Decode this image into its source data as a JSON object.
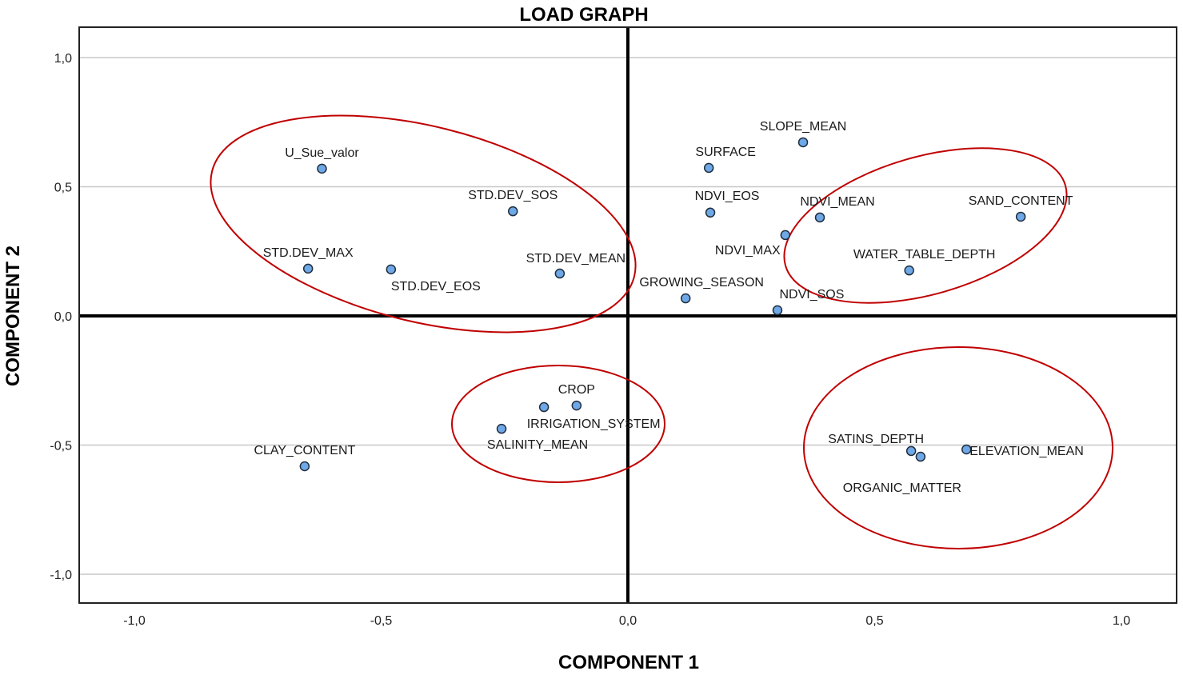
{
  "chart_data": {
    "type": "scatter",
    "title": "LOAD GRAPH",
    "xlabel": "COMPONENT 1",
    "ylabel": "COMPONENT 2",
    "xlim": [
      -1.2,
      1.1
    ],
    "ylim": [
      -1.12,
      1.12
    ],
    "xticks": [
      -1.0,
      -0.5,
      0.0,
      0.5,
      1.0
    ],
    "xtick_labels": [
      "-1,0",
      "-0,5",
      "0,0",
      "0,5",
      "1,0"
    ],
    "yticks": [
      1.0,
      0.5,
      0.0,
      -0.5,
      -1.0
    ],
    "ytick_labels": [
      "1,0",
      "0,5",
      "0,0",
      "-0,5",
      "-1,0"
    ],
    "grid": "horizontal",
    "marker_color": "#6fa8e6",
    "marker_edge": "#1f2d3d",
    "highlight_color": "#c00000",
    "points": [
      {
        "label": "U_Sue_valor",
        "x": -0.62,
        "y": 0.57,
        "label_pos": "above"
      },
      {
        "label": "STD.DEV_SOS",
        "x": -0.233,
        "y": 0.405,
        "label_pos": "above"
      },
      {
        "label": "STD.DEV_MAX",
        "x": -0.648,
        "y": 0.183,
        "label_pos": "above"
      },
      {
        "label": "STD.DEV_EOS",
        "x": -0.48,
        "y": 0.18,
        "label_pos": "below-right"
      },
      {
        "label": "STD.DEV_MEAN",
        "x": -0.138,
        "y": 0.164,
        "label_pos": "above-right"
      },
      {
        "label": "SLOPE_MEAN",
        "x": 0.355,
        "y": 0.672,
        "label_pos": "above"
      },
      {
        "label": "SURFACE",
        "x": 0.164,
        "y": 0.573,
        "label_pos": "above-right"
      },
      {
        "label": "NDVI_EOS",
        "x": 0.167,
        "y": 0.4,
        "label_pos": "above-right"
      },
      {
        "label": "NDVI_MEAN",
        "x": 0.389,
        "y": 0.381,
        "label_pos": "above"
      },
      {
        "label": "NDVI_MAX",
        "x": 0.319,
        "y": 0.313,
        "label_pos": "below-left"
      },
      {
        "label": "GROWING_SEASON",
        "x": 0.117,
        "y": 0.068,
        "label_pos": "above"
      },
      {
        "label": "NDVI_SOS",
        "x": 0.303,
        "y": 0.022,
        "label_pos": "above-right"
      },
      {
        "label": "SAND_CONTENT",
        "x": 0.796,
        "y": 0.384,
        "label_pos": "above"
      },
      {
        "label": "WATER_TABLE_DEPTH",
        "x": 0.57,
        "y": 0.176,
        "label_pos": "above"
      },
      {
        "label": "CROP",
        "x": -0.104,
        "y": -0.347,
        "label_pos": "above"
      },
      {
        "label": "IRRIGATION_SYSTEM",
        "x": -0.17,
        "y": -0.353,
        "label_pos": "below-right"
      },
      {
        "label": "SALINITY_MEAN",
        "x": -0.256,
        "y": -0.437,
        "label_pos": "below-right"
      },
      {
        "label": "CLAY_CONTENT",
        "x": -0.655,
        "y": -0.582,
        "label_pos": "above"
      },
      {
        "label": "SATINS_DEPTH",
        "x": 0.574,
        "y": -0.523,
        "label_pos": "above-left"
      },
      {
        "label": "ORGANIC_MATTER",
        "x": 0.593,
        "y": -0.545,
        "label_pos": "below-left"
      },
      {
        "label": "ELEVATION_MEAN",
        "x": 0.686,
        "y": -0.517,
        "label_pos": "right"
      }
    ],
    "groups": [
      {
        "name": "std-dev-group",
        "members": [
          "U_Sue_valor",
          "STD.DEV_SOS",
          "STD.DEV_MAX",
          "STD.DEV_EOS",
          "STD.DEV_MEAN"
        ]
      },
      {
        "name": "soil-texture-group",
        "members": [
          "SAND_CONTENT",
          "WATER_TABLE_DEPTH"
        ]
      },
      {
        "name": "management-group",
        "members": [
          "CROP",
          "IRRIGATION_SYSTEM",
          "SALINITY_MEAN"
        ]
      },
      {
        "name": "depth-elevation-group",
        "members": [
          "SATINS_DEPTH",
          "ORGANIC_MATTER",
          "ELEVATION_MEAN"
        ]
      }
    ]
  }
}
